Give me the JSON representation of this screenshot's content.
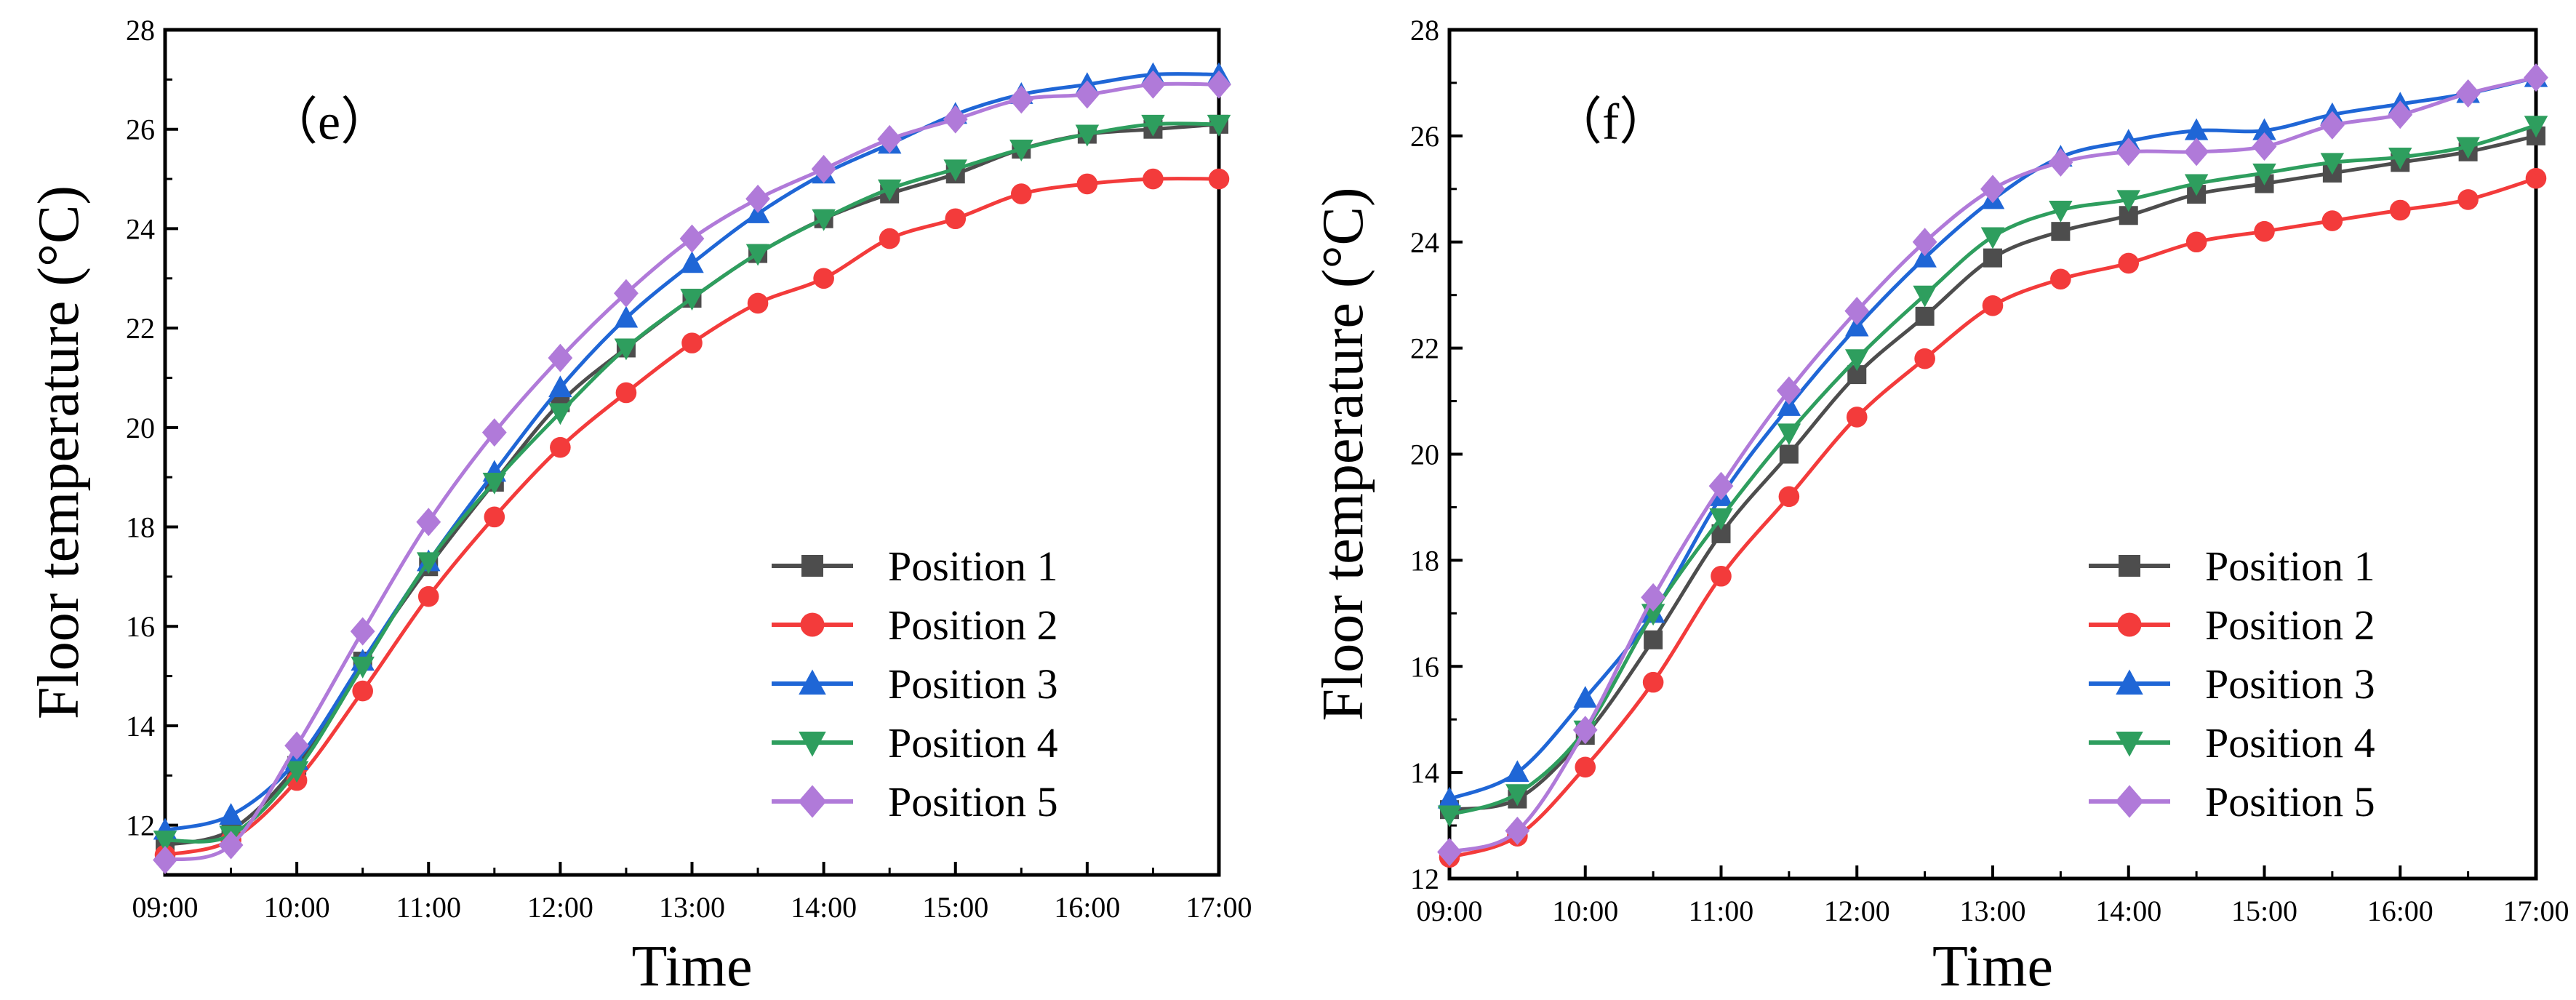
{
  "chart_data": [
    {
      "type": "line",
      "panel_label": "（e）",
      "xlabel": "Time",
      "ylabel": "Floor temperature (°C)",
      "x": [
        "09:00",
        "09:30",
        "10:00",
        "10:30",
        "11:00",
        "11:30",
        "12:00",
        "12:30",
        "13:00",
        "13:30",
        "14:00",
        "14:30",
        "15:00",
        "15:30",
        "16:00",
        "16:30",
        "17:00"
      ],
      "xticklabels": [
        "09:00",
        "10:00",
        "11:00",
        "12:00",
        "13:00",
        "14:00",
        "15:00",
        "16:00",
        "17:00"
      ],
      "ylim": [
        11,
        28
      ],
      "yticks": [
        12,
        14,
        16,
        18,
        20,
        22,
        24,
        26,
        28
      ],
      "legend_position": "bottom-right",
      "series": [
        {
          "name": "Position 1",
          "color": "#4d4d4d",
          "marker": "square",
          "values": [
            11.6,
            11.9,
            13.2,
            15.3,
            17.2,
            18.9,
            20.5,
            21.6,
            22.6,
            23.5,
            24.2,
            24.7,
            25.1,
            25.6,
            25.9,
            26.0,
            26.1
          ]
        },
        {
          "name": "Position 2",
          "color": "#f33b3b",
          "marker": "circle",
          "values": [
            11.4,
            11.7,
            12.9,
            14.7,
            16.6,
            18.2,
            19.6,
            20.7,
            21.7,
            22.5,
            23.0,
            23.8,
            24.2,
            24.7,
            24.9,
            25.0,
            25.0
          ]
        },
        {
          "name": "Position 3",
          "color": "#1f66d6",
          "marker": "triangle-up",
          "values": [
            11.9,
            12.2,
            13.3,
            15.3,
            17.3,
            19.1,
            20.8,
            22.2,
            23.3,
            24.3,
            25.1,
            25.7,
            26.3,
            26.7,
            26.9,
            27.1,
            27.1
          ]
        },
        {
          "name": "Position 4",
          "color": "#2e9e5e",
          "marker": "triangle-down",
          "values": [
            11.7,
            11.8,
            13.1,
            15.2,
            17.3,
            18.9,
            20.3,
            21.6,
            22.6,
            23.5,
            24.2,
            24.8,
            25.2,
            25.6,
            25.9,
            26.1,
            26.1
          ]
        },
        {
          "name": "Position 5",
          "color": "#b07ad9",
          "marker": "diamond",
          "values": [
            11.3,
            11.6,
            13.6,
            15.9,
            18.1,
            19.9,
            21.4,
            22.7,
            23.8,
            24.6,
            25.2,
            25.8,
            26.2,
            26.6,
            26.7,
            26.9,
            26.9
          ]
        }
      ]
    },
    {
      "type": "line",
      "panel_label": "（f）",
      "xlabel": "Time",
      "ylabel": "Floor temperature (°C)",
      "x": [
        "09:00",
        "09:30",
        "10:00",
        "10:30",
        "11:00",
        "11:30",
        "12:00",
        "12:30",
        "13:00",
        "13:30",
        "14:00",
        "14:30",
        "15:00",
        "15:30",
        "16:00",
        "16:30",
        "17:00"
      ],
      "xticklabels": [
        "09:00",
        "10:00",
        "11:00",
        "12:00",
        "13:00",
        "14:00",
        "15:00",
        "16:00",
        "17:00"
      ],
      "ylim": [
        12,
        28
      ],
      "yticks": [
        12,
        14,
        16,
        18,
        20,
        22,
        24,
        26,
        28
      ],
      "legend_position": "bottom-right",
      "series": [
        {
          "name": "Position 1",
          "color": "#4d4d4d",
          "marker": "square",
          "values": [
            13.3,
            13.5,
            14.7,
            16.5,
            18.5,
            20.0,
            21.5,
            22.6,
            23.7,
            24.2,
            24.5,
            24.9,
            25.1,
            25.3,
            25.5,
            25.7,
            26.0
          ]
        },
        {
          "name": "Position 2",
          "color": "#f33b3b",
          "marker": "circle",
          "values": [
            12.4,
            12.8,
            14.1,
            15.7,
            17.7,
            19.2,
            20.7,
            21.8,
            22.8,
            23.3,
            23.6,
            24.0,
            24.2,
            24.4,
            24.6,
            24.8,
            25.2
          ]
        },
        {
          "name": "Position 3",
          "color": "#1f66d6",
          "marker": "triangle-up",
          "values": [
            13.5,
            14.0,
            15.4,
            17.0,
            19.2,
            20.9,
            22.4,
            23.7,
            24.8,
            25.6,
            25.9,
            26.1,
            26.1,
            26.4,
            26.6,
            26.8,
            27.1
          ]
        },
        {
          "name": "Position 4",
          "color": "#2e9e5e",
          "marker": "triangle-down",
          "values": [
            13.2,
            13.6,
            14.8,
            17.0,
            18.8,
            20.4,
            21.8,
            23.0,
            24.1,
            24.6,
            24.8,
            25.1,
            25.3,
            25.5,
            25.6,
            25.8,
            26.2
          ]
        },
        {
          "name": "Position 5",
          "color": "#b07ad9",
          "marker": "diamond",
          "values": [
            12.5,
            12.9,
            14.8,
            17.3,
            19.4,
            21.2,
            22.7,
            24.0,
            25.0,
            25.5,
            25.7,
            25.7,
            25.8,
            26.2,
            26.4,
            26.8,
            27.1
          ]
        }
      ]
    }
  ]
}
